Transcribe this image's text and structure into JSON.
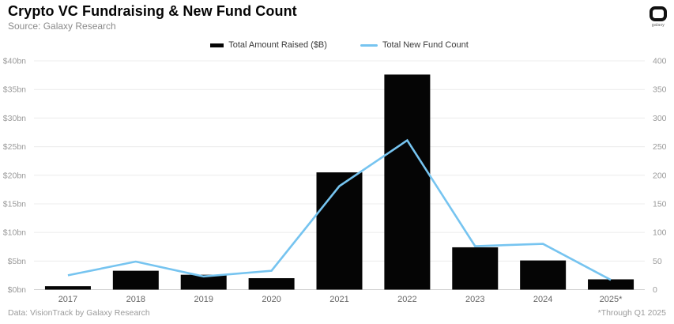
{
  "header": {
    "title": "Crypto VC Fundraising & New Fund Count",
    "subtitle": "Source: Galaxy Research",
    "logo_word": "galaxy"
  },
  "legend": {
    "bar_label": "Total Amount Raised ($B)",
    "line_label": "Total New Fund Count"
  },
  "footer": {
    "left": "Data: VisionTrack by Galaxy Research",
    "right": "*Through Q1 2025"
  },
  "colors": {
    "bar": "#050505",
    "line": "#76c4f0",
    "gridline": "#ececec",
    "axis_line": "#cfcfcf",
    "tick_label": "#9a9a9a",
    "x_label": "#666666"
  },
  "chart_data": {
    "type": "bar",
    "title": "Crypto VC Fundraising & New Fund Count",
    "categories": [
      "2017",
      "2018",
      "2019",
      "2020",
      "2021",
      "2022",
      "2023",
      "2024",
      "2025*"
    ],
    "series": [
      {
        "name": "Total Amount Raised ($B)",
        "type": "bar",
        "axis": "left",
        "values": [
          0.6,
          3.3,
          2.6,
          2.0,
          20.5,
          37.6,
          7.4,
          5.1,
          1.8
        ]
      },
      {
        "name": "Total New Fund Count",
        "type": "line",
        "axis": "right",
        "values": [
          25,
          49,
          23,
          33,
          181,
          261,
          76,
          80,
          17
        ]
      }
    ],
    "left_axis": {
      "label": "Total Amount Raised ($B)",
      "ticks": [
        "$0bn",
        "$5bn",
        "$10bn",
        "$15bn",
        "$20bn",
        "$25bn",
        "$30bn",
        "$35bn",
        "$40bn"
      ],
      "min": 0,
      "max": 40
    },
    "right_axis": {
      "label": "Total New Fund Count",
      "ticks": [
        "0",
        "50",
        "100",
        "150",
        "200",
        "250",
        "300",
        "350",
        "400"
      ],
      "min": 0,
      "max": 400
    },
    "grid": true,
    "legend_position": "top"
  }
}
